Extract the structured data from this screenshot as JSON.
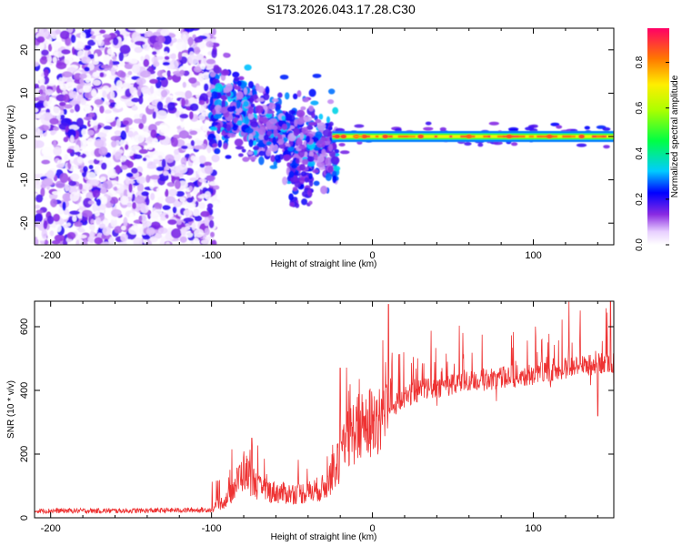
{
  "title": "S173.2026.043.17.28.C30",
  "chart_data": [
    {
      "type": "heatmap",
      "name": "spectrogram",
      "xlabel": "Height of straight line (km)",
      "ylabel": "Frequency (Hz)",
      "xlim": [
        -210,
        150
      ],
      "ylim": [
        -25,
        25
      ],
      "xticks": [
        -200,
        -100,
        0,
        100
      ],
      "yticks": [
        -20,
        -10,
        0,
        10,
        20
      ],
      "colorbar": {
        "label": "Normalized spectral amplitude",
        "range": [
          0,
          0.95
        ],
        "ticks": [
          0.0,
          0.2,
          0.4,
          0.6,
          0.8
        ]
      },
      "regions": [
        {
          "x_range": [
            -210,
            -100
          ],
          "y_range": [
            -25,
            25
          ],
          "description": "broad noise",
          "amplitude": 0.15
        },
        {
          "x_range": [
            -100,
            -25
          ],
          "y_center_start": 8,
          "y_center_end": -4,
          "amplitude": 0.3
        },
        {
          "x_range": [
            -25,
            150
          ],
          "y_center": 0,
          "amplitude": 0.65
        }
      ],
      "line": {
        "x_range": [
          -25,
          150
        ],
        "y": 0,
        "peak_points_x": [
          -22,
          -18,
          -10,
          -5,
          8,
          30,
          60,
          85,
          110,
          130
        ]
      }
    },
    {
      "type": "line",
      "name": "snr",
      "xlabel": "Height of straight line (km)",
      "ylabel": "SNR (10 * v/v)",
      "xlim": [
        -210,
        150
      ],
      "ylim": [
        0,
        680
      ],
      "xticks": [
        -200,
        -100,
        0,
        100
      ],
      "yticks": [
        0,
        200,
        400,
        600
      ],
      "color": "#ee3333",
      "trend_points": [
        [
          -210,
          22
        ],
        [
          -150,
          22
        ],
        [
          -100,
          25
        ],
        [
          -90,
          60
        ],
        [
          -80,
          150
        ],
        [
          -70,
          90
        ],
        [
          -60,
          80
        ],
        [
          -50,
          75
        ],
        [
          -40,
          80
        ],
        [
          -30,
          95
        ],
        [
          -25,
          140
        ],
        [
          -20,
          180
        ],
        [
          -15,
          250
        ],
        [
          -10,
          280
        ],
        [
          0,
          300
        ],
        [
          10,
          340
        ],
        [
          20,
          380
        ],
        [
          30,
          400
        ],
        [
          50,
          420
        ],
        [
          80,
          440
        ],
        [
          100,
          450
        ],
        [
          120,
          470
        ],
        [
          150,
          490
        ]
      ],
      "notable_spikes": [
        [
          -75,
          250
        ],
        [
          -20,
          470
        ],
        [
          10,
          670
        ],
        [
          148,
          680
        ],
        [
          140,
          320
        ]
      ]
    }
  ]
}
